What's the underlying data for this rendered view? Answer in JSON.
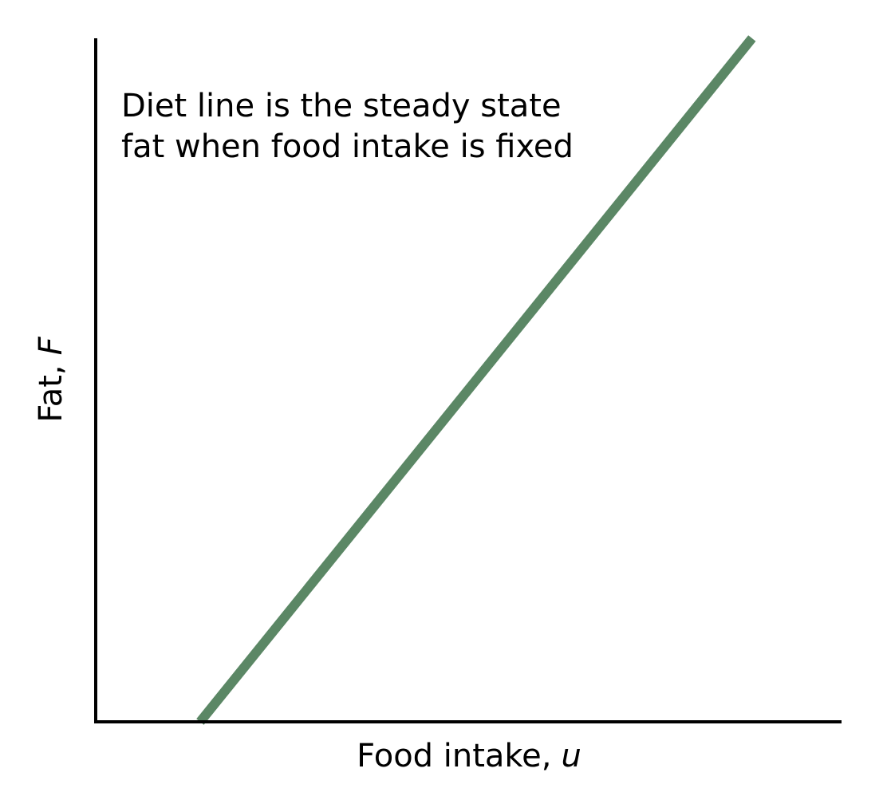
{
  "chart_data": {
    "type": "line",
    "xlabel": "Food intake,",
    "xlabel_var": "u",
    "ylabel": "Fat,",
    "ylabel_var": "F",
    "annotation": [
      "Diet line is the steady state",
      "fat when food intake is fixed"
    ],
    "x": [
      0.14,
      0.88
    ],
    "series": [
      {
        "color": "#5b8765",
        "values": [
          0,
          1
        ]
      }
    ],
    "xlim": [
      0,
      1
    ],
    "ylim": [
      0,
      1
    ]
  }
}
